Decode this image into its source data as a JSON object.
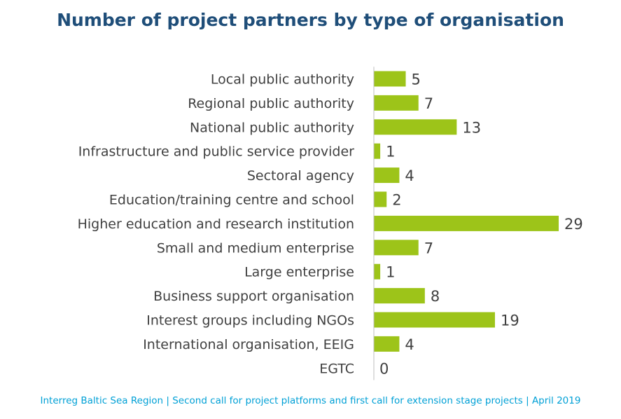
{
  "title": "Number of project partners by type of organisation",
  "footer": "Interreg Baltic Sea Region | Second call for project platforms and first call for extension stage projects | April 2019",
  "colors": {
    "bar": "#9dc419",
    "title": "#1f4e79",
    "footer": "#00a0d6",
    "axis": "#bfbfbf",
    "text": "#404040"
  },
  "chart_data": {
    "type": "bar",
    "orientation": "horizontal",
    "title": "Number of project partners by type of organisation",
    "xlabel": "",
    "ylabel": "",
    "grid": false,
    "legend": "none",
    "categories": [
      "Local public authority",
      "Regional public authority",
      "National public authority",
      "Infrastructure and public service provider",
      "Sectoral agency",
      "Education/training centre and school",
      "Higher education and research institution",
      "Small and medium enterprise",
      "Large enterprise",
      "Business support organisation",
      "Interest groups including NGOs",
      "International organisation, EEIG",
      "EGTC"
    ],
    "values": [
      5,
      7,
      13,
      1,
      4,
      2,
      29,
      7,
      1,
      8,
      19,
      4,
      0
    ],
    "xlim": [
      0,
      29
    ]
  }
}
